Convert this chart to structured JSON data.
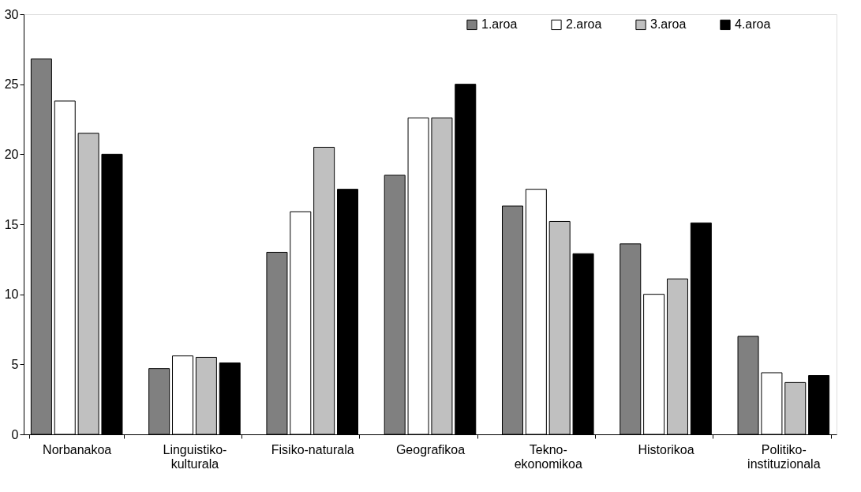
{
  "chart_data": {
    "type": "bar",
    "categories": [
      "Norbanakoa",
      "Linguistiko-\nkulturala",
      "Fisiko-naturala",
      "Geografikoa",
      "Tekno-\nekonomikoa",
      "Historikoa",
      "Politiko-\ninstituzionala"
    ],
    "series": [
      {
        "name": "1.aroa",
        "color": "#808080",
        "values": [
          26.8,
          4.7,
          13.0,
          18.5,
          16.3,
          13.6,
          7.0
        ]
      },
      {
        "name": "2.aroa",
        "color": "#ffffff",
        "values": [
          23.8,
          5.6,
          15.9,
          22.6,
          17.5,
          10.0,
          4.4
        ]
      },
      {
        "name": "3.aroa",
        "color": "#c0c0c0",
        "values": [
          21.5,
          5.5,
          20.5,
          22.6,
          15.2,
          11.1,
          3.7
        ]
      },
      {
        "name": "4.aroa",
        "color": "#000000",
        "values": [
          20.0,
          5.1,
          17.5,
          25.0,
          12.9,
          15.1,
          4.2
        ]
      }
    ],
    "ylim": [
      0,
      30
    ],
    "yticks": [
      0,
      5,
      10,
      15,
      20,
      25,
      30
    ],
    "grid": false,
    "legend": "top right"
  }
}
